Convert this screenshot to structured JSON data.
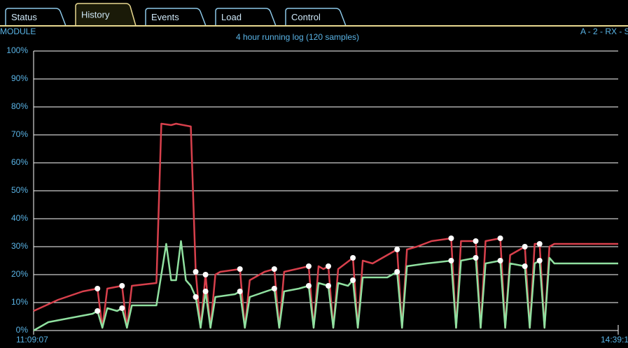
{
  "tabs": [
    "Status",
    "History",
    "Events",
    "Load",
    "Control"
  ],
  "active_tab": 1,
  "header": {
    "left": "MODULE",
    "right": "A - 2 - RX - S"
  },
  "chart_data": {
    "type": "line",
    "title": "4 hour running log (120 samples)",
    "xlim": [
      0,
      119
    ],
    "xticks": [
      {
        "value": 0,
        "label": "11:09:07"
      },
      {
        "value": 119,
        "label": "14:39:1"
      }
    ],
    "ylim": [
      0,
      100
    ],
    "yticks": [
      {
        "value": 0,
        "label": "0%"
      },
      {
        "value": 10,
        "label": "10%"
      },
      {
        "value": 20,
        "label": "20%"
      },
      {
        "value": 30,
        "label": "30%"
      },
      {
        "value": 40,
        "label": "40%"
      },
      {
        "value": 50,
        "label": "50%"
      },
      {
        "value": 60,
        "label": "60%"
      },
      {
        "value": 70,
        "label": "70%"
      },
      {
        "value": 80,
        "label": "80%"
      },
      {
        "value": 90,
        "label": "90%"
      },
      {
        "value": 100,
        "label": "100%"
      }
    ],
    "grid": true,
    "series": [
      {
        "color": "#d8404c",
        "x": [
          0,
          5,
          10,
          13,
          14,
          15,
          18,
          19,
          20,
          25,
          26,
          28,
          29,
          32,
          33,
          34,
          35,
          36,
          37,
          38,
          42,
          43,
          44,
          47,
          49,
          50,
          51,
          56,
          57,
          58,
          59,
          60,
          61,
          62,
          65,
          66,
          67,
          69,
          74,
          75,
          76,
          78,
          81,
          85,
          86,
          87,
          90,
          91,
          92,
          95,
          96,
          97,
          100,
          101,
          102,
          103,
          104,
          105,
          106,
          119
        ],
        "values": [
          7,
          11,
          14,
          15,
          1,
          15,
          16,
          1,
          16,
          17,
          74,
          73.5,
          74,
          73,
          21,
          1,
          20,
          1,
          20,
          21,
          22,
          1,
          18,
          21,
          22,
          1,
          21,
          23,
          1,
          23,
          22,
          23,
          1,
          22,
          26,
          1,
          25,
          24,
          29,
          1,
          29,
          30,
          32,
          33,
          1,
          32,
          32,
          1,
          32,
          33,
          1,
          27,
          30,
          1,
          31,
          31,
          1,
          30,
          31,
          31
        ]
      },
      {
        "color": "#90e0a0",
        "x": [
          0,
          3,
          6,
          9,
          12,
          13,
          14,
          15,
          17,
          18,
          19,
          20,
          25,
          27,
          28,
          29,
          30,
          31,
          32,
          33,
          34,
          35,
          36,
          37,
          41,
          42,
          43,
          44,
          49,
          50,
          51,
          54,
          56,
          57,
          58,
          60,
          61,
          62,
          64,
          65,
          66,
          67,
          72,
          74,
          75,
          76,
          80,
          85,
          86,
          87,
          90,
          91,
          92,
          95,
          96,
          97,
          100,
          101,
          102,
          103,
          104,
          105,
          106,
          119
        ],
        "values": [
          0,
          3,
          4,
          5,
          6,
          7,
          1,
          8,
          7,
          8,
          1,
          9,
          9,
          31,
          18,
          18,
          32,
          18,
          16,
          12,
          1,
          14,
          1,
          12,
          13,
          14,
          1,
          12,
          15,
          1,
          14,
          15,
          16,
          1,
          17,
          16,
          1,
          17,
          16,
          18,
          1,
          19,
          19,
          21,
          1,
          23,
          24,
          25,
          1,
          25,
          26,
          1,
          24,
          25,
          1,
          24,
          23,
          1,
          24,
          25,
          1,
          26,
          24,
          24
        ]
      }
    ]
  }
}
